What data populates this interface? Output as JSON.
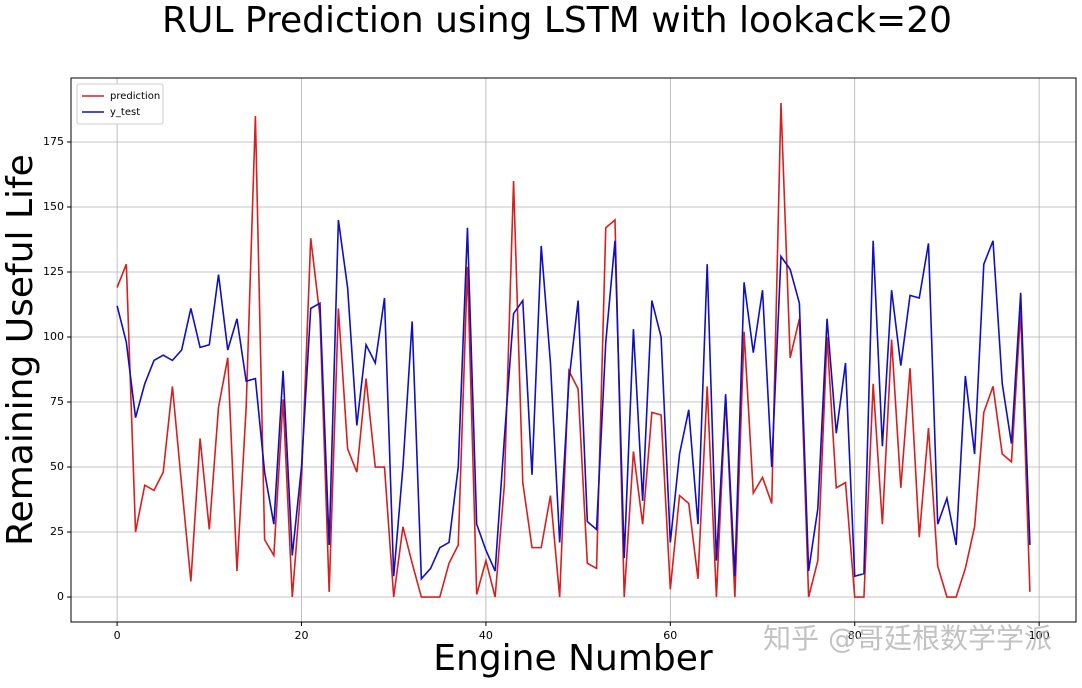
{
  "chart_data": {
    "type": "line",
    "title": "RUL Prediction using LSTM with lookack=20",
    "x_label": "Engine Number",
    "y_label": "Remaining Useful Life",
    "watermark": "知乎 @哥廷根数学学派",
    "x": [
      0,
      1,
      2,
      3,
      4,
      5,
      6,
      7,
      8,
      9,
      10,
      11,
      12,
      13,
      14,
      15,
      16,
      17,
      18,
      19,
      20,
      21,
      22,
      23,
      24,
      25,
      26,
      27,
      28,
      29,
      30,
      31,
      32,
      33,
      34,
      35,
      36,
      37,
      38,
      39,
      40,
      41,
      42,
      43,
      44,
      45,
      46,
      47,
      48,
      49,
      50,
      51,
      52,
      53,
      54,
      55,
      56,
      57,
      58,
      59,
      60,
      61,
      62,
      63,
      64,
      65,
      66,
      67,
      68,
      69,
      70,
      71,
      72,
      73,
      74,
      75,
      76,
      77,
      78,
      79,
      80,
      81,
      82,
      83,
      84,
      85,
      86,
      87,
      88,
      89,
      90,
      91,
      92,
      93,
      94,
      95,
      96,
      97,
      98,
      99
    ],
    "series": [
      {
        "name": "prediction",
        "color": "#d62020",
        "values": [
          119,
          128,
          25,
          43,
          41,
          48,
          81,
          43,
          6,
          61,
          26,
          73,
          92,
          10,
          73,
          185,
          22,
          16,
          76,
          0,
          45,
          138,
          108,
          2,
          111,
          57,
          48,
          84,
          50,
          50,
          0,
          27,
          13,
          0,
          0,
          0,
          13,
          20,
          127,
          1,
          14,
          0,
          43,
          160,
          44,
          19,
          19,
          39,
          0,
          87,
          80,
          13,
          11,
          142,
          145,
          0,
          56,
          28,
          71,
          70,
          3,
          39,
          36,
          7,
          81,
          0,
          77,
          0,
          102,
          40,
          46,
          36,
          190,
          92,
          107,
          0,
          14,
          100,
          42,
          44,
          0,
          0,
          82,
          28,
          99,
          42,
          88,
          23,
          65,
          12,
          0,
          0,
          11,
          27,
          71,
          81,
          55,
          52,
          110,
          2
        ]
      },
      {
        "name": "y_test",
        "color": "#1010c0",
        "values": [
          112,
          98,
          69,
          82,
          91,
          93,
          91,
          95,
          111,
          96,
          97,
          124,
          95,
          107,
          83,
          84,
          48,
          28,
          87,
          16,
          50,
          111,
          113,
          20,
          145,
          119,
          66,
          97,
          90,
          115,
          8,
          50,
          106,
          7,
          11,
          19,
          21,
          50,
          142,
          28,
          18,
          10,
          61,
          109,
          114,
          47,
          135,
          90,
          21,
          83,
          114,
          29,
          26,
          98,
          137,
          15,
          103,
          37,
          114,
          100,
          21,
          55,
          72,
          28,
          128,
          14,
          78,
          8,
          121,
          94,
          118,
          50,
          131,
          126,
          113,
          10,
          34,
          107,
          63,
          90,
          8,
          9,
          137,
          58,
          118,
          89,
          116,
          115,
          136,
          28,
          38,
          20,
          85,
          55,
          128,
          137,
          82,
          59,
          117,
          20
        ]
      }
    ],
    "xlim": [
      -5,
      104
    ],
    "xticks": [
      0,
      20,
      40,
      60,
      80,
      100
    ],
    "ylim": [
      -9.6,
      199.6
    ],
    "yticks": [
      0,
      25,
      50,
      75,
      100,
      125,
      150,
      175
    ],
    "grid": true,
    "legend": "upper left"
  }
}
